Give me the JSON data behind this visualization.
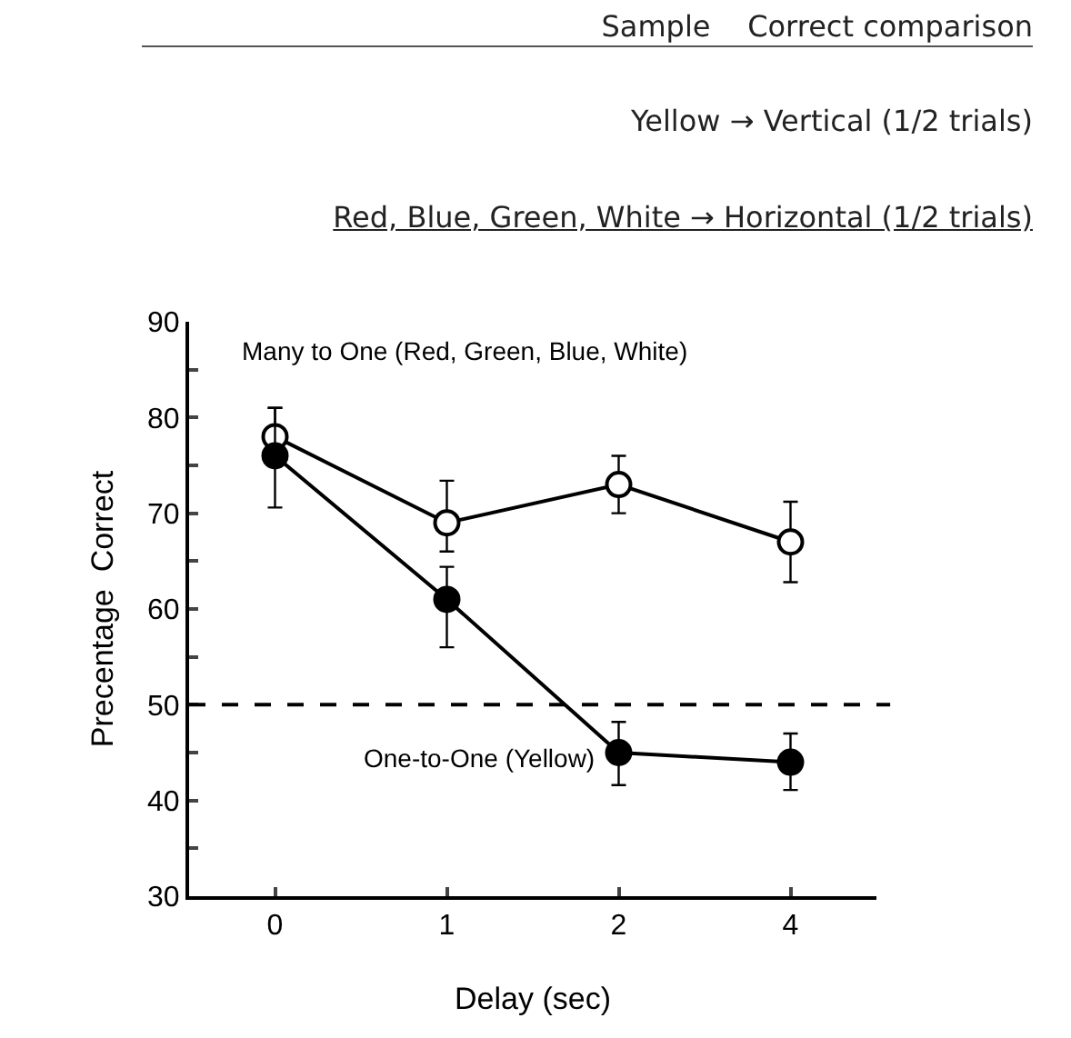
{
  "chart_data": {
    "type": "line",
    "xlabel": "Delay (sec)",
    "ylabel": "Precentage  Correct",
    "categories": [
      "0",
      "1",
      "2",
      "4"
    ],
    "series": [
      {
        "name": "Many to One (Red, Green, Blue, White)",
        "color": "#000000",
        "values": [
          78,
          69,
          73,
          67
        ],
        "errors": [
          [
            77,
            81
          ],
          [
            66,
            73.4
          ],
          [
            70,
            76
          ],
          [
            62.8,
            71.2
          ]
        ]
      },
      {
        "name": "One-to-One (Yellow)",
        "color": "#000000",
        "values": [
          76,
          61,
          45,
          44
        ],
        "errors": [
          [
            70.6,
            81
          ],
          [
            56,
            64.4
          ],
          [
            41.6,
            48.2
          ],
          [
            41.1,
            47
          ]
        ]
      }
    ],
    "ylim": [
      30,
      90
    ],
    "yticks": [
      30,
      {
        "value": 35,
        "label": null
      },
      40,
      {
        "value": 45,
        "label": null
      },
      50,
      {
        "value": 55,
        "label": null
      },
      60,
      {
        "value": 65,
        "label": null
      },
      70,
      {
        "value": 75,
        "label": null
      },
      80,
      {
        "value": 85,
        "label": null
      },
      90
    ],
    "ref_lines": [
      {
        "axis": "y",
        "value": 50,
        "line_style": "dashed"
      }
    ],
    "annotations": [
      "Sample    Correct comparison",
      "Yellow → Vertical (1/2 trials)",
      "Red, Blue, Green, White → Horizontal (1/2 trials)"
    ],
    "marker": "circle",
    "line_style": "solid",
    "grid": false,
    "legend": false
  }
}
